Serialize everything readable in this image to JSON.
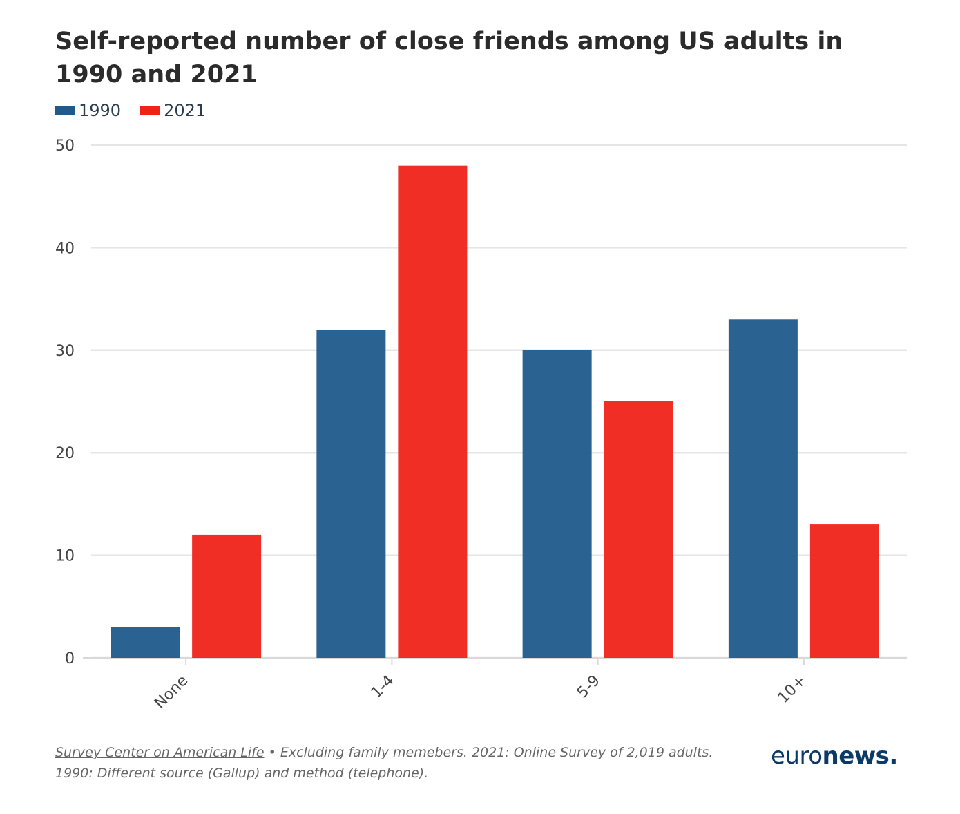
{
  "chart_data": {
    "type": "bar",
    "title": "Self-reported number of close friends among US adults in 1990 and 2021",
    "xlabel": "",
    "ylabel": "",
    "categories": [
      "None",
      "1-4",
      "5-9",
      "10+"
    ],
    "series": [
      {
        "name": "1990",
        "values": [
          3,
          32,
          30,
          33
        ],
        "color": "#1f5a8c"
      },
      {
        "name": "2021",
        "values": [
          12,
          48,
          25,
          13
        ],
        "color": "#f0231a"
      }
    ],
    "ylim": [
      0,
      50
    ],
    "yticks": [
      0,
      10,
      20,
      30,
      40,
      50
    ],
    "grid": true,
    "legend": "top-left"
  },
  "footer": {
    "source_link": "Survey Center on American Life",
    "note": " • Excluding family memebers. 2021: Online Survey of 2,019 adults. 1990: Different source (Gallup) and method (telephone)."
  },
  "logo": {
    "part1": "euro",
    "part2": "news."
  }
}
